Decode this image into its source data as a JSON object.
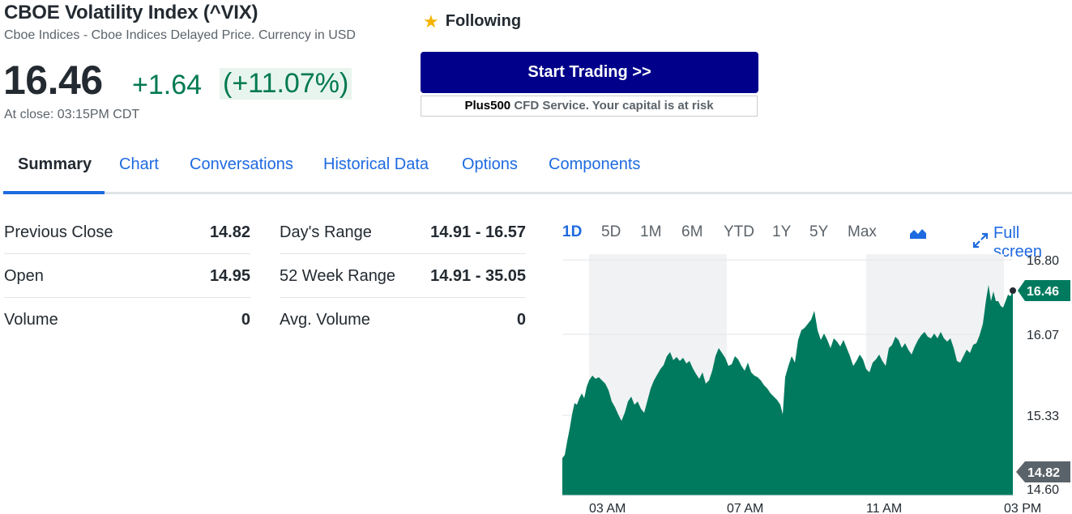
{
  "quote": {
    "name": "CBOE Volatility Index (^VIX)",
    "subtitle": "Cboe Indices - Cboe Indices Delayed Price. Currency in USD",
    "price": "16.46",
    "change": "+1.64",
    "change_pct": "(+11.07%)",
    "close_time": "At close: 03:15PM CDT"
  },
  "follow": {
    "icon": "star-icon",
    "label": "Following"
  },
  "ad": {
    "button_label": "Start Trading >>",
    "brand": "Plus500",
    "disclaimer": " CFD Service. Your capital is at risk"
  },
  "tabs": [
    {
      "label": "Summary",
      "active": true
    },
    {
      "label": "Chart"
    },
    {
      "label": "Conversations"
    },
    {
      "label": "Historical Data"
    },
    {
      "label": "Options"
    },
    {
      "label": "Components"
    }
  ],
  "stats_left": [
    {
      "label": "Previous Close",
      "value": "14.82"
    },
    {
      "label": "Open",
      "value": "14.95"
    },
    {
      "label": "Volume",
      "value": "0"
    }
  ],
  "stats_right": [
    {
      "label": "Day's Range",
      "value": "14.91 - 16.57"
    },
    {
      "label": "52 Week Range",
      "value": "14.91 - 35.05"
    },
    {
      "label": "Avg. Volume",
      "value": "0"
    }
  ],
  "chart": {
    "ranges": [
      "1D",
      "5D",
      "1M",
      "6M",
      "YTD",
      "1Y",
      "5Y",
      "Max"
    ],
    "active_range": "1D",
    "chart_type_icon": "mountain-chart-icon",
    "fullscreen_label": "Full screen",
    "fullscreen_icon": "expand-icon",
    "fill_color": "#007a5e",
    "y_ticks": [
      "16.80",
      "16.07",
      "15.33",
      "14.60"
    ],
    "x_ticks": [
      "03 AM",
      "07 AM",
      "11 AM",
      "03 PM"
    ],
    "current_tag": "16.46",
    "prev_close_tag": "14.82",
    "current_tag_color": "#007a5e",
    "prev_close_tag_color": "#5b636a"
  }
}
